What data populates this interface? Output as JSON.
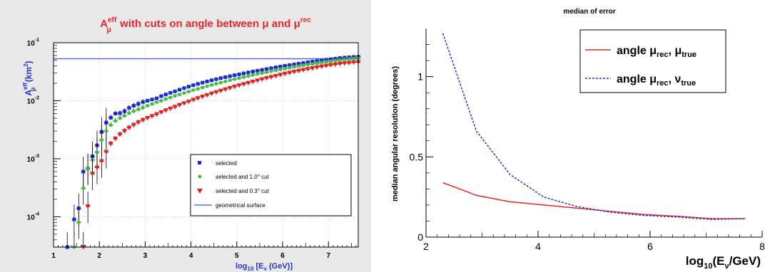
{
  "chart_data": [
    {
      "type": "scatter",
      "title": "A",
      "title_parts": {
        "symbol": "A",
        "symbol_sup": "eff",
        "symbol_sub": "μ",
        "middle": " with cuts on angle between ",
        "mu": "μ",
        "and": " and ",
        "mu2": "μ",
        "mu2_sup": "rec"
      },
      "xlabel_parts": {
        "lead": "log",
        "sub": "10",
        "bracket_open": " [E",
        "nu": "ν",
        "tail": "   (GeV)]"
      },
      "ylabel_parts": {
        "lead": "A",
        "sup": "eff",
        "sub": "μ",
        "unit_open": " (km",
        "unit_sup": "2",
        "unit_close": ")"
      },
      "xlim": [
        1.0,
        7.65
      ],
      "ylim": [
        3e-05,
        0.1
      ],
      "yscale": "log",
      "x_ticks": [
        "1",
        "2",
        "3",
        "4",
        "5",
        "6",
        "7"
      ],
      "y_ticks": [
        {
          "base": "10",
          "exp": "-4",
          "value": 0.0001
        },
        {
          "base": "10",
          "exp": "-3",
          "value": 0.001
        },
        {
          "base": "10",
          "exp": "-2",
          "value": 0.01
        },
        {
          "base": "10",
          "exp": "-1",
          "value": 0.1
        }
      ],
      "grid": true,
      "geometrical_surface": 0.053,
      "legend": {
        "placement": "lower-right",
        "entries": [
          {
            "label": "selected",
            "color": "#1c2bd4",
            "marker": "square"
          },
          {
            "label": "selected and 1.0° cut",
            "color": "#3fc23f",
            "marker": "circle"
          },
          {
            "label": "selected and 0.3° cut",
            "color": "#ee1c1c",
            "marker": "triangle-down"
          },
          {
            "label": "geometrical surface",
            "color": "#5a6fe0",
            "marker": "line"
          }
        ]
      },
      "series": [
        {
          "name": "selected",
          "color": "#1c2bd4",
          "x": [
            1.3,
            1.45,
            1.55,
            1.65,
            1.75,
            1.85,
            1.95,
            2.05,
            2.15,
            2.25,
            2.35,
            2.45,
            2.55,
            2.65,
            2.75,
            2.85,
            2.95,
            3.05,
            3.15,
            3.25,
            3.35,
            3.45,
            3.55,
            3.65,
            3.75,
            3.85,
            3.95,
            4.05,
            4.15,
            4.25,
            4.35,
            4.45,
            4.55,
            4.65,
            4.75,
            4.85,
            4.95,
            5.05,
            5.15,
            5.25,
            5.35,
            5.45,
            5.55,
            5.65,
            5.75,
            5.85,
            5.95,
            6.05,
            6.15,
            6.25,
            6.35,
            6.45,
            6.55,
            6.65,
            6.75,
            6.85,
            6.95,
            7.05,
            7.15,
            7.25,
            7.35,
            7.45,
            7.55,
            7.65
          ],
          "y": [
            3e-05,
            9e-05,
            0.00014,
            0.0006,
            0.00068,
            0.0011,
            0.0017,
            0.0029,
            0.0042,
            0.0051,
            0.006,
            0.0061,
            0.0066,
            0.0075,
            0.0082,
            0.0088,
            0.0095,
            0.01,
            0.0105,
            0.011,
            0.012,
            0.0128,
            0.0137,
            0.0145,
            0.0155,
            0.0165,
            0.0175,
            0.0185,
            0.0195,
            0.0205,
            0.0215,
            0.0225,
            0.0235,
            0.0245,
            0.0255,
            0.0265,
            0.0275,
            0.0285,
            0.0296,
            0.0307,
            0.0318,
            0.0329,
            0.034,
            0.0352,
            0.0364,
            0.0376,
            0.0388,
            0.04,
            0.0412,
            0.0424,
            0.0436,
            0.0448,
            0.046,
            0.0472,
            0.0484,
            0.0496,
            0.0508,
            0.052,
            0.0532,
            0.0544,
            0.0553,
            0.0561,
            0.0568,
            0.0575
          ]
        },
        {
          "name": "selected and 1.0° cut",
          "color": "#3fc23f",
          "x": [
            1.45,
            1.55,
            1.65,
            1.75,
            1.85,
            1.95,
            2.05,
            2.15,
            2.25,
            2.35,
            2.45,
            2.55,
            2.65,
            2.75,
            2.85,
            2.95,
            3.05,
            3.15,
            3.25,
            3.35,
            3.45,
            3.55,
            3.65,
            3.75,
            3.85,
            3.95,
            4.05,
            4.15,
            4.25,
            4.35,
            4.45,
            4.55,
            4.65,
            4.75,
            4.85,
            4.95,
            5.05,
            5.15,
            5.25,
            5.35,
            5.45,
            5.55,
            5.65,
            5.75,
            5.85,
            5.95,
            6.05,
            6.15,
            6.25,
            6.35,
            6.45,
            6.55,
            6.65,
            6.75,
            6.85,
            6.95,
            7.05,
            7.15,
            7.25,
            7.35,
            7.45,
            7.55,
            7.65
          ],
          "y": [
            3e-05,
            8e-05,
            0.00031,
            0.00068,
            0.00095,
            0.0013,
            0.0021,
            0.003,
            0.0038,
            0.0045,
            0.005,
            0.0055,
            0.0061,
            0.0066,
            0.0071,
            0.0076,
            0.0082,
            0.0088,
            0.0094,
            0.01,
            0.0107,
            0.0114,
            0.0121,
            0.0128,
            0.0136,
            0.0144,
            0.0152,
            0.016,
            0.0169,
            0.0178,
            0.0187,
            0.0196,
            0.0205,
            0.0215,
            0.0225,
            0.0235,
            0.0245,
            0.0255,
            0.0266,
            0.0277,
            0.0288,
            0.0299,
            0.031,
            0.0322,
            0.0334,
            0.0346,
            0.0358,
            0.037,
            0.0382,
            0.0394,
            0.0406,
            0.0418,
            0.043,
            0.0442,
            0.0454,
            0.0466,
            0.0478,
            0.049,
            0.0502,
            0.0513,
            0.0523,
            0.0532,
            0.054
          ]
        },
        {
          "name": "selected and 0.3° cut",
          "color": "#ee1c1c",
          "x": [
            1.65,
            1.75,
            1.85,
            1.95,
            2.05,
            2.15,
            2.25,
            2.35,
            2.45,
            2.55,
            2.65,
            2.75,
            2.85,
            2.95,
            3.05,
            3.15,
            3.25,
            3.35,
            3.45,
            3.55,
            3.65,
            3.75,
            3.85,
            3.95,
            4.05,
            4.15,
            4.25,
            4.35,
            4.45,
            4.55,
            4.65,
            4.75,
            4.85,
            4.95,
            5.05,
            5.15,
            5.25,
            5.35,
            5.45,
            5.55,
            5.65,
            5.75,
            5.85,
            5.95,
            6.05,
            6.15,
            6.25,
            6.35,
            6.45,
            6.55,
            6.65,
            6.75,
            6.85,
            6.95,
            7.05,
            7.15,
            7.25,
            7.35,
            7.45,
            7.55,
            7.65
          ],
          "y": [
            3e-05,
            0.00015,
            0.00055,
            0.0007,
            0.0009,
            0.0013,
            0.0018,
            0.0022,
            0.0026,
            0.003,
            0.0034,
            0.0038,
            0.0042,
            0.0046,
            0.005,
            0.0054,
            0.0058,
            0.0063,
            0.0068,
            0.0073,
            0.0078,
            0.0084,
            0.009,
            0.0096,
            0.0103,
            0.011,
            0.0117,
            0.0124,
            0.0132,
            0.014,
            0.0148,
            0.0156,
            0.0165,
            0.0174,
            0.0183,
            0.0192,
            0.0202,
            0.0212,
            0.0222,
            0.0233,
            0.0244,
            0.0255,
            0.0266,
            0.0278,
            0.029,
            0.0302,
            0.0314,
            0.0326,
            0.0338,
            0.035,
            0.0362,
            0.0374,
            0.0386,
            0.0398,
            0.041,
            0.0421,
            0.0432,
            0.0441,
            0.0449,
            0.0456,
            0.0462
          ]
        }
      ]
    },
    {
      "type": "line",
      "title": "median of error",
      "ylabel": "median angular resolution (degrees)",
      "xlabel_parts": {
        "lead": "log",
        "sub": "10",
        "paren_open": "(E",
        "nu": "ν",
        "tail": "/GeV)"
      },
      "xlim": [
        2,
        8
      ],
      "ylim": [
        0,
        1.3
      ],
      "x_ticks": [
        "2",
        "4",
        "6",
        "8"
      ],
      "y_ticks": [
        "0",
        "0.5",
        "1"
      ],
      "grid": false,
      "legend": {
        "placement": "top-right",
        "entries": [
          {
            "label": "angle μrec, μtrue",
            "word": "angle ",
            "a": "μ",
            "a_sub": "rec",
            "sep": ", ",
            "b": "μ",
            "b_sub": "true",
            "color": "#e8262a",
            "dash": false
          },
          {
            "label": "angle μrec, νtrue",
            "word": "angle ",
            "a": "μ",
            "a_sub": "rec",
            "sep": ", ",
            "b": "ν",
            "b_sub": "true",
            "color": "#2233cc",
            "dash": true
          }
        ]
      },
      "series": [
        {
          "name": "angle μrec, μtrue",
          "color": "#e8262a",
          "x": [
            2.3,
            2.9,
            3.5,
            4.1,
            4.7,
            5.3,
            5.9,
            6.5,
            7.1,
            7.7
          ],
          "y": [
            0.34,
            0.26,
            0.22,
            0.2,
            0.18,
            0.16,
            0.14,
            0.13,
            0.115,
            0.115
          ]
        },
        {
          "name": "angle μrec, νtrue",
          "color": "#2233cc",
          "x": [
            2.3,
            2.9,
            3.5,
            4.1,
            4.7,
            5.3,
            5.9,
            6.5,
            7.1,
            7.7
          ],
          "y": [
            1.27,
            0.66,
            0.39,
            0.25,
            0.19,
            0.155,
            0.135,
            0.125,
            0.11,
            0.115
          ]
        }
      ]
    }
  ]
}
